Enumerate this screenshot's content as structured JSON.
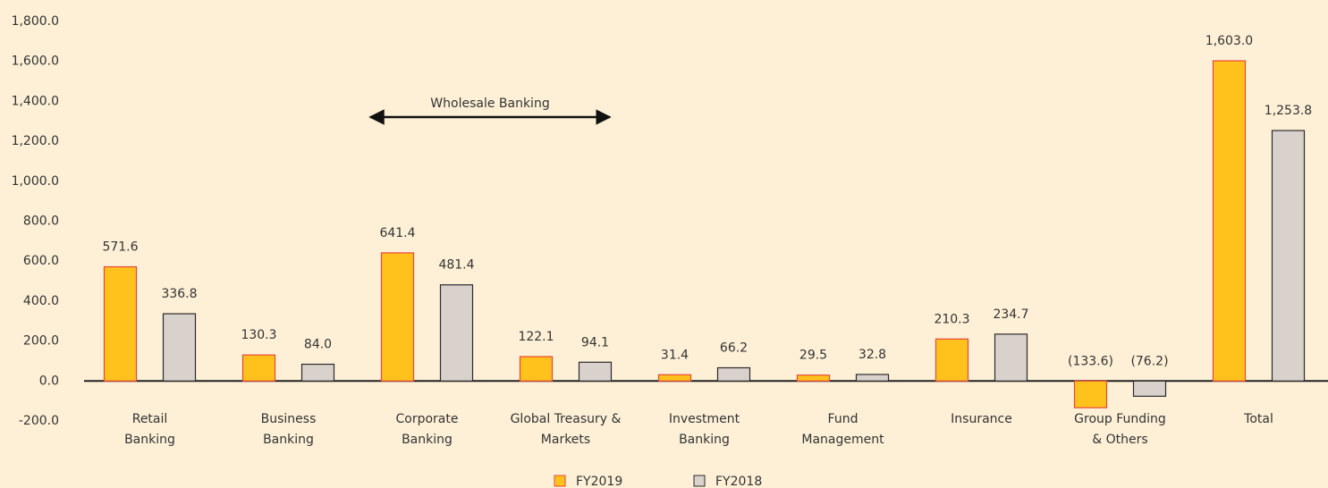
{
  "chart_data": {
    "type": "bar",
    "categories": [
      [
        "Retail",
        "Banking"
      ],
      [
        "Business",
        "Banking"
      ],
      [
        "Corporate",
        "Banking"
      ],
      [
        "Global Treasury &",
        "Markets"
      ],
      [
        "Investment",
        "Banking"
      ],
      [
        "Fund",
        "Management"
      ],
      [
        "Insurance"
      ],
      [
        "Group Funding",
        "& Others"
      ],
      [
        "Total"
      ]
    ],
    "series": [
      {
        "name": "FY2019",
        "color": "#ffc21c",
        "edge": "#e8463a",
        "values": [
          571.6,
          130.3,
          641.4,
          122.1,
          31.4,
          29.5,
          210.3,
          -133.6,
          1603.0
        ],
        "value_labels": [
          "571.6",
          "130.3",
          "641.4",
          "122.1",
          "31.4",
          "29.5",
          "210.3",
          "(133.6)",
          "1,603.0"
        ]
      },
      {
        "name": "FY2018",
        "color": "#d9d1cc",
        "edge": "#2b2b2b",
        "values": [
          336.8,
          84.0,
          481.4,
          94.1,
          66.2,
          32.8,
          234.7,
          -76.2,
          1253.8
        ],
        "value_labels": [
          "336.8",
          "84.0",
          "481.4",
          "94.1",
          "66.2",
          "32.8",
          "234.7",
          "(76.2)",
          "1,253.8"
        ]
      }
    ],
    "ylim": [
      -200,
      1800
    ],
    "yticks": [
      {
        "value": -200,
        "label": "-200.0"
      },
      {
        "value": 0,
        "label": "0.0"
      },
      {
        "value": 200,
        "label": "200.0"
      },
      {
        "value": 400,
        "label": "400.0"
      },
      {
        "value": 600,
        "label": "600.0"
      },
      {
        "value": 800,
        "label": "800.0"
      },
      {
        "value": 1000,
        "label": "1,000.0"
      },
      {
        "value": 1200,
        "label": "1,200.0"
      },
      {
        "value": 1400,
        "label": "1,400.0"
      },
      {
        "value": 1600,
        "label": "1,600.0"
      },
      {
        "value": 1800,
        "label": "1,800.0"
      }
    ],
    "annotation": "Wholesale Banking"
  }
}
